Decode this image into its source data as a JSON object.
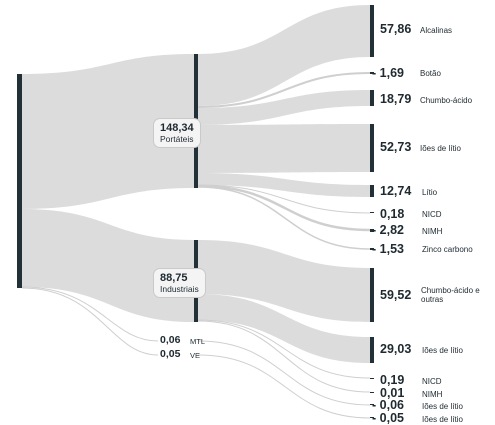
{
  "portateis": {
    "value": "148,34",
    "label": "Portáteis"
  },
  "industriais": {
    "value": "88,75",
    "label": "Industriais"
  },
  "mtl": {
    "value": "0,06",
    "label": "MTL"
  },
  "ve": {
    "value": "0,05",
    "label": "VE"
  },
  "outputs": [
    {
      "value": "57,86",
      "label": "Alcalinas"
    },
    {
      "value": "1,69",
      "label": "Botão"
    },
    {
      "value": "18,79",
      "label": "Chumbo-ácido"
    },
    {
      "value": "52,73",
      "label": "Iões de lítio"
    },
    {
      "value": "12,74",
      "label": "Lítio"
    },
    {
      "value": "0,18",
      "label": "NICD"
    },
    {
      "value": "2,82",
      "label": "NIMH"
    },
    {
      "value": "1,53",
      "label": "Zinco carbono"
    },
    {
      "value": "59,52",
      "label": "Chumbo-ácido e outras"
    },
    {
      "value": "29,03",
      "label": "Iões de lítio"
    },
    {
      "value": "0,19",
      "label": "NICD"
    },
    {
      "value": "0,01",
      "label": "NIMH"
    },
    {
      "value": "0,06",
      "label": "Iões de lítio"
    },
    {
      "value": "0,05",
      "label": "Iões de lítio"
    }
  ]
}
